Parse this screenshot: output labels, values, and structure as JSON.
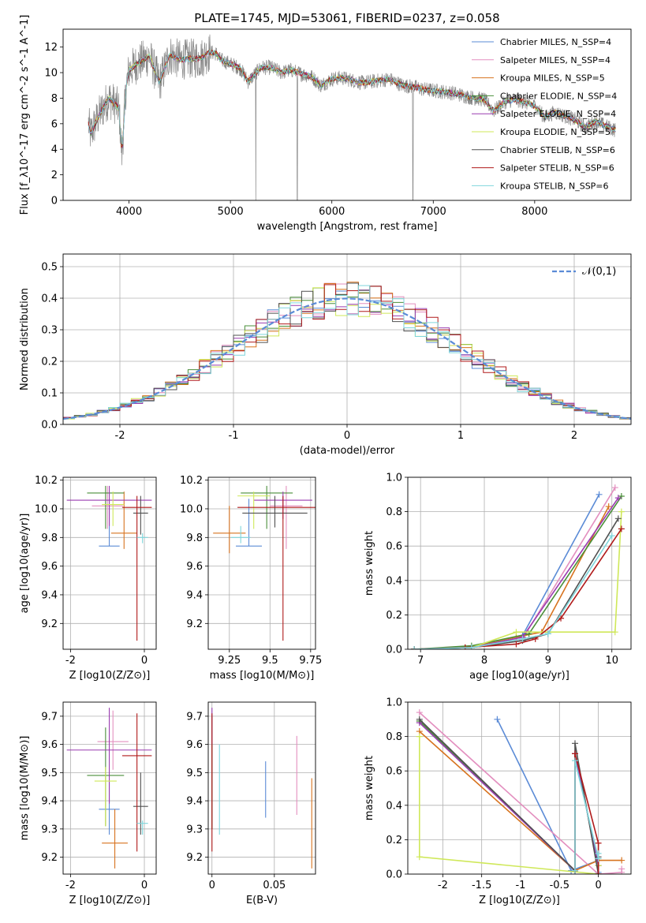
{
  "title": "PLATE=1745, MJD=53061, FIBERID=0237, z=0.058",
  "colors": [
    "#5b8bd6",
    "#e38fbf",
    "#d7731f",
    "#4a8f3a",
    "#9a3cb0",
    "#cfe859",
    "#505050",
    "#b01a1a",
    "#7fd6dc"
  ],
  "spectrum_color": "#888888",
  "chart_data": [
    {
      "id": "spectrum",
      "type": "line",
      "xlabel": "wavelength [Angstrom, rest frame]",
      "ylabel": "Flux [f_λ10^-17 erg cm^-2 s^-1 A^-1]",
      "xlim": [
        3350,
        8950
      ],
      "ylim": [
        0,
        13.4
      ],
      "xticks": [
        4000,
        5000,
        6000,
        7000,
        8000
      ],
      "yticks": [
        0,
        2,
        4,
        6,
        8,
        10,
        12
      ],
      "grid": false,
      "legend_position": "top-right",
      "legend": [
        "Chabrier MILES, N_SSP=4",
        "Salpeter MILES, N_SSP=4",
        "Kroupa MILES, N_SSP=5",
        "Chabrier ELODIE, N_SSP=4",
        "Salpeter ELODIE, N_SSP=4",
        "Kroupa ELODIE, N_SSP=5",
        "Chabrier STELIB, N_SSP=6",
        "Salpeter STELIB, N_SSP=6",
        "Kroupa STELIB, N_SSP=6"
      ],
      "data_x": [
        3600,
        3620,
        3700,
        3800,
        3900,
        3930,
        3970,
        4000,
        4100,
        4200,
        4300,
        4400,
        4500,
        4600,
        4700,
        4800,
        4861,
        4900,
        5000,
        5100,
        5175,
        5300,
        5400,
        5500,
        5600,
        5700,
        5800,
        5890,
        6000,
        6100,
        6200,
        6300,
        6400,
        6563,
        6700,
        6800,
        6900,
        7000,
        7100,
        7200,
        7300,
        7400,
        7500,
        7600,
        7700,
        7800,
        7900,
        8000,
        8100,
        8200,
        8300,
        8400,
        8500,
        8600,
        8700,
        8800
      ],
      "model_y": [
        6.0,
        5.2,
        6.6,
        8.0,
        7.2,
        3.6,
        8.8,
        10.2,
        10.8,
        11.3,
        9.2,
        11.4,
        11.0,
        11.1,
        11.1,
        11.6,
        11.5,
        11.0,
        10.7,
        10.3,
        9.3,
        10.4,
        10.4,
        10.0,
        10.2,
        9.9,
        9.7,
        9.0,
        9.5,
        9.6,
        9.4,
        9.2,
        9.3,
        9.5,
        9.0,
        8.9,
        8.7,
        8.6,
        8.5,
        8.4,
        8.2,
        8.0,
        7.9,
        7.0,
        7.7,
        7.9,
        7.7,
        7.4,
        6.5,
        6.9,
        6.6,
        6.3,
        5.7,
        6.2,
        5.8,
        5.5
      ]
    },
    {
      "id": "residuals",
      "type": "line",
      "xlabel": "(data-model)/error",
      "ylabel": "Normed distribution",
      "xlim": [
        -2.5,
        2.5
      ],
      "ylim": [
        0,
        0.54
      ],
      "xticks": [
        -2,
        -1,
        0,
        1,
        2
      ],
      "yticks": [
        0.0,
        0.1,
        0.2,
        0.3,
        0.4,
        0.5
      ],
      "grid": true,
      "legend_position": "top-right",
      "legend": [
        "𝒩(0,1)"
      ],
      "bin_width": 0.1,
      "bin_start": -2.5
    },
    {
      "id": "age_vs_Z",
      "type": "scatter",
      "xlabel": "Z [log10(Z/Z⊙)]",
      "ylabel": "age  [log10(age/yr)]",
      "xlim": [
        -2.2,
        0.32
      ],
      "ylim": [
        9.02,
        10.22
      ],
      "xticks": [
        -2,
        0
      ],
      "yticks": [
        9.2,
        9.4,
        9.6,
        9.8,
        10.0,
        10.2
      ],
      "grid": true,
      "points": [
        {
          "x": -0.95,
          "y": 9.74,
          "xerr": 0.28,
          "ylo": 9.74,
          "yhi": 10.07
        },
        {
          "x": -1.0,
          "y": 10.02,
          "xerr": 0.42,
          "ylo": 9.86,
          "yhi": 10.16
        },
        {
          "x": -0.55,
          "y": 9.83,
          "xerr": 0.35,
          "ylo": 9.72,
          "yhi": 10.12
        },
        {
          "x": -1.05,
          "y": 10.11,
          "xerr": 0.5,
          "ylo": 9.86,
          "yhi": 10.16
        },
        {
          "x": -0.95,
          "y": 10.06,
          "xerr": 1.15,
          "ylo": 9.88,
          "yhi": 10.16
        },
        {
          "x": -0.85,
          "y": 10.03,
          "xerr": 0.3,
          "ylo": 9.88,
          "yhi": 10.12
        },
        {
          "x": -0.1,
          "y": 9.97,
          "xerr": 0.2,
          "ylo": 9.82,
          "yhi": 10.09
        },
        {
          "x": -0.2,
          "y": 10.01,
          "xerr": 0.4,
          "ylo": 9.08,
          "yhi": 10.09
        },
        {
          "x": -0.05,
          "y": 9.8,
          "xerr": 0.15,
          "ylo": 9.76,
          "yhi": 9.83
        }
      ]
    },
    {
      "id": "age_vs_mass",
      "type": "scatter",
      "xlabel": "mass [log10(M/M⊙)]",
      "ylabel": "",
      "xlim": [
        9.12,
        9.78
      ],
      "ylim": [
        9.02,
        10.22
      ],
      "xticks": [
        9.25,
        9.5,
        9.75
      ],
      "yticks": [
        9.2,
        9.4,
        9.6,
        9.8,
        10.0,
        10.2
      ],
      "grid": true,
      "points": [
        {
          "x": 9.37,
          "y": 9.74,
          "xerr": 0.08,
          "ylo": 9.74,
          "yhi": 10.07
        },
        {
          "x": 9.6,
          "y": 10.02,
          "xerr": 0.1,
          "ylo": 9.72,
          "yhi": 10.16
        },
        {
          "x": 9.25,
          "y": 9.83,
          "xerr": 0.1,
          "ylo": 9.69,
          "yhi": 10.02
        },
        {
          "x": 9.48,
          "y": 10.11,
          "xerr": 0.16,
          "ylo": 9.86,
          "yhi": 10.16
        },
        {
          "x": 9.58,
          "y": 10.06,
          "xerr": 0.18,
          "ylo": 9.93,
          "yhi": 10.12
        },
        {
          "x": 9.4,
          "y": 10.09,
          "xerr": 0.1,
          "ylo": 9.86,
          "yhi": 10.12
        },
        {
          "x": 9.53,
          "y": 9.97,
          "xerr": 0.2,
          "ylo": 9.87,
          "yhi": 10.09
        },
        {
          "x": 9.58,
          "y": 10.01,
          "xerr": 0.28,
          "ylo": 9.08,
          "yhi": 10.09
        },
        {
          "x": 9.32,
          "y": 9.8,
          "xerr": 0.06,
          "ylo": 9.76,
          "yhi": 9.88
        }
      ]
    },
    {
      "id": "weight_vs_age",
      "type": "line",
      "xlabel": "age  [log10(age/yr)]",
      "ylabel": "mass weight",
      "xlim": [
        6.8,
        10.3
      ],
      "ylim": [
        0,
        1.0
      ],
      "xticks": [
        7,
        8,
        9,
        10
      ],
      "yticks": [
        0.0,
        0.2,
        0.4,
        0.6,
        0.8,
        1.0
      ],
      "grid": true,
      "series": [
        {
          "x": [
            6.9,
            7.7,
            8.6,
            9.8
          ],
          "y": [
            0.0,
            0.01,
            0.08,
            0.9
          ]
        },
        {
          "x": [
            6.9,
            7.8,
            8.6,
            10.05
          ],
          "y": [
            0.0,
            0.01,
            0.06,
            0.94
          ]
        },
        {
          "x": [
            6.9,
            7.7,
            8.5,
            8.9,
            9.95
          ],
          "y": [
            0.0,
            0.01,
            0.07,
            0.1,
            0.83
          ]
        },
        {
          "x": [
            6.9,
            7.8,
            8.7,
            10.15
          ],
          "y": [
            0.0,
            0.02,
            0.09,
            0.89
          ]
        },
        {
          "x": [
            6.9,
            7.8,
            8.6,
            10.1
          ],
          "y": [
            0.0,
            0.01,
            0.07,
            0.88
          ]
        },
        {
          "x": [
            6.9,
            7.8,
            8.5,
            10.05,
            10.15
          ],
          "y": [
            0.0,
            0.01,
            0.1,
            0.1,
            0.8
          ]
        },
        {
          "x": [
            6.9,
            7.8,
            8.6,
            9.0,
            10.1
          ],
          "y": [
            0.0,
            0.01,
            0.05,
            0.09,
            0.76
          ]
        },
        {
          "x": [
            6.9,
            7.7,
            8.5,
            8.8,
            9.2,
            10.15
          ],
          "y": [
            0.0,
            0.01,
            0.03,
            0.06,
            0.18,
            0.7
          ]
        },
        {
          "x": [
            6.9,
            7.8,
            8.6,
            9.0,
            10.0
          ],
          "y": [
            0.0,
            0.01,
            0.06,
            0.09,
            0.66
          ]
        }
      ]
    },
    {
      "id": "mass_vs_Z",
      "type": "scatter",
      "xlabel": "Z [log10(Z/Z⊙)]",
      "ylabel": "mass [log10(M/M⊙)]",
      "xlim": [
        -2.2,
        0.32
      ],
      "ylim": [
        9.14,
        9.75
      ],
      "xticks": [
        -2,
        0
      ],
      "yticks": [
        9.2,
        9.3,
        9.4,
        9.5,
        9.6,
        9.7
      ],
      "grid": true,
      "points": [
        {
          "x": -0.95,
          "y": 9.37,
          "xerr": 0.28,
          "ylo": 9.28,
          "yhi": 9.47
        },
        {
          "x": -0.85,
          "y": 9.61,
          "xerr": 0.42,
          "ylo": 9.51,
          "yhi": 9.72
        },
        {
          "x": -0.8,
          "y": 9.25,
          "xerr": 0.35,
          "ylo": 9.16,
          "yhi": 9.37
        },
        {
          "x": -1.05,
          "y": 9.49,
          "xerr": 0.5,
          "ylo": 9.31,
          "yhi": 9.66
        },
        {
          "x": -0.95,
          "y": 9.58,
          "xerr": 1.15,
          "ylo": 9.39,
          "yhi": 9.73
        },
        {
          "x": -1.05,
          "y": 9.47,
          "xerr": 0.3,
          "ylo": 9.31,
          "yhi": 9.52
        },
        {
          "x": -0.1,
          "y": 9.38,
          "xerr": 0.2,
          "ylo": 9.28,
          "yhi": 9.5
        },
        {
          "x": -0.2,
          "y": 9.56,
          "xerr": 0.4,
          "ylo": 9.22,
          "yhi": 9.71
        },
        {
          "x": -0.05,
          "y": 9.32,
          "xerr": 0.15,
          "ylo": 9.28,
          "yhi": 9.33
        }
      ]
    },
    {
      "id": "mass_vs_EBV",
      "type": "scatter",
      "xlabel": "E(B-V)",
      "ylabel": "",
      "xlim": [
        -0.003,
        0.083
      ],
      "ylim": [
        9.14,
        9.75
      ],
      "xticks": [
        0.0,
        0.05
      ],
      "yticks": [
        9.2,
        9.3,
        9.4,
        9.5,
        9.6,
        9.7
      ],
      "grid": true,
      "points": [
        {
          "x": 0.043,
          "y": 9.44,
          "ylo": 9.34,
          "yhi": 9.54
        },
        {
          "x": 0.068,
          "y": 9.49,
          "ylo": 9.35,
          "yhi": 9.63
        },
        {
          "x": 0.08,
          "y": 9.32,
          "ylo": 9.16,
          "yhi": 9.48
        },
        {
          "x": 0.0,
          "y": 9.5,
          "ylo": 9.3,
          "yhi": 9.7
        },
        {
          "x": 0.0,
          "y": 9.5,
          "ylo": 9.3,
          "yhi": 9.73
        },
        {
          "x": 0.0,
          "y": 9.45,
          "ylo": 9.3,
          "yhi": 9.6
        },
        {
          "x": 0.0,
          "y": 9.45,
          "ylo": 9.3,
          "yhi": 9.6
        },
        {
          "x": 0.0,
          "y": 9.45,
          "ylo": 9.22,
          "yhi": 9.71
        },
        {
          "x": 0.006,
          "y": 9.44,
          "ylo": 9.28,
          "yhi": 9.6
        }
      ]
    },
    {
      "id": "weight_vs_Z",
      "type": "line",
      "xlabel": "Z [log10(Z/Z⊙)]",
      "ylabel": "mass weight",
      "xlim": [
        -2.45,
        0.42
      ],
      "ylim": [
        0,
        1.0
      ],
      "xticks": [
        -2.0,
        -1.5,
        -1.0,
        -0.5,
        0.0
      ],
      "yticks": [
        0.0,
        0.2,
        0.4,
        0.6,
        0.8,
        1.0
      ],
      "grid": true,
      "series": [
        {
          "x": [
            -1.3,
            -0.35,
            0.0,
            0.0
          ],
          "y": [
            0.9,
            0.02,
            0.08,
            0.01
          ]
        },
        {
          "x": [
            -2.3,
            0.0,
            0.3,
            0.3
          ],
          "y": [
            0.94,
            0.0,
            0.01,
            0.03
          ]
        },
        {
          "x": [
            -2.3,
            -0.3,
            0.0,
            0.3
          ],
          "y": [
            0.83,
            0.02,
            0.08,
            0.08
          ]
        },
        {
          "x": [
            -2.3,
            -0.3,
            -0.3,
            0.0
          ],
          "y": [
            0.89,
            0.02,
            0.7,
            0.05
          ]
        },
        {
          "x": [
            -2.3,
            -0.3,
            -0.3,
            0.0
          ],
          "y": [
            0.88,
            0.02,
            0.7,
            0.05
          ]
        },
        {
          "x": [
            -2.3,
            -2.3,
            0.0,
            0.0
          ],
          "y": [
            0.8,
            0.1,
            0.0,
            0.05
          ]
        },
        {
          "x": [
            -2.3,
            -0.3,
            -0.3,
            0.0,
            0.0
          ],
          "y": [
            0.9,
            0.02,
            0.76,
            0.0,
            0.1
          ]
        },
        {
          "x": [
            -0.3,
            -0.3,
            0.0,
            0.0
          ],
          "y": [
            0.02,
            0.7,
            0.18,
            0.0
          ]
        },
        {
          "x": [
            -0.3,
            -0.3,
            0.0,
            0.0
          ],
          "y": [
            0.02,
            0.66,
            0.09,
            0.12
          ]
        }
      ]
    }
  ]
}
